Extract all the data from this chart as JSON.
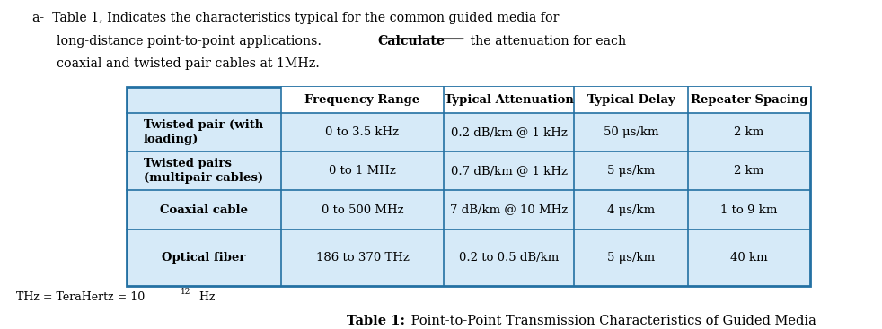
{
  "col_headers": [
    "Frequency Range",
    "Typical Attenuation",
    "Typical Delay",
    "Repeater Spacing"
  ],
  "row_labels": [
    "Twisted pair (with\nloading)",
    "Twisted pairs\n(multipair cables)",
    "Coaxial cable",
    "Optical fiber"
  ],
  "table_data": [
    [
      "0 to 3.5 kHz",
      "0.2 dB/km @ 1 kHz",
      "50 μs/km",
      "2 km"
    ],
    [
      "0 to 1 MHz",
      "0.7 dB/km @ 1 kHz",
      "5 μs/km",
      "2 km"
    ],
    [
      "0 to 500 MHz",
      "7 dB/km @ 10 MHz",
      "4 μs/km",
      "1 to 9 km"
    ],
    [
      "186 to 370 THz",
      "0.2 to 0.5 dB/km",
      "5 μs/km",
      "40 km"
    ]
  ],
  "bg_color": "#ffffff",
  "table_bg": "#d6eaf8",
  "border_color": "#2471a3"
}
